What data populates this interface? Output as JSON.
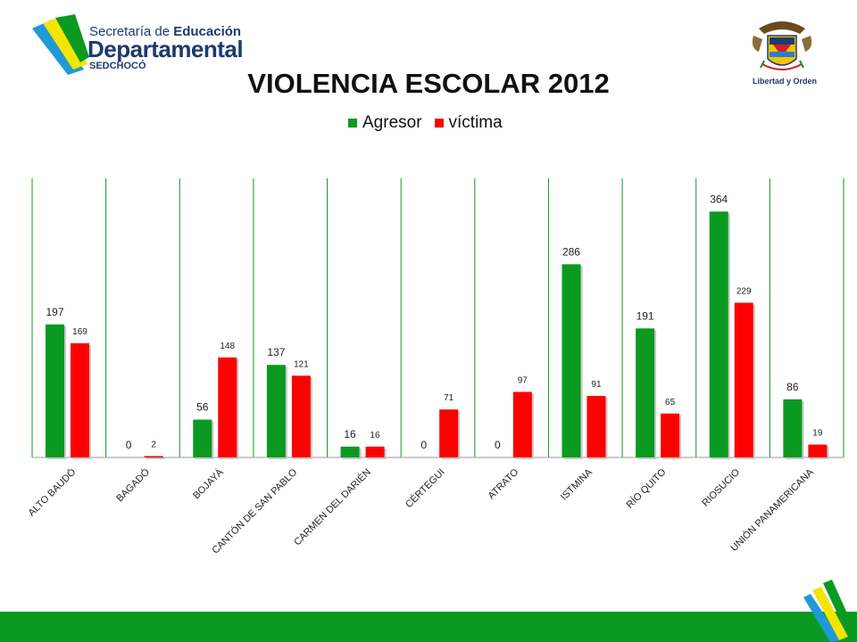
{
  "header": {
    "org_line1_a": "Secretaría de ",
    "org_line1_b": "Educación",
    "org_line2": "Departamental",
    "org_line3": "SEDCHOCÓ",
    "motto": "Libertad y Orden"
  },
  "colors": {
    "agresor": "#0a9a21",
    "victima": "#ff0000",
    "footer": "#0a9a21",
    "brand_blue": "#1d3b6e"
  },
  "chart_data": {
    "type": "bar",
    "title": "VIOLENCIA ESCOLAR 2012",
    "xlabel": "",
    "ylabel": "",
    "ylim": [
      0,
      400
    ],
    "grid": false,
    "legend_position": "top-center",
    "categories": [
      "ALTO BAUDÓ",
      "BAGADÓ",
      "BOJAYÁ",
      "CANTÓN DE SAN PABLO",
      "CARMEN DEL DARIÉN",
      "CÉRTEGUI",
      "ATRATO",
      "ISTMINA",
      "RÍO QUITO",
      "RIOSUCIO",
      "UNIÓN PANAMERICANA"
    ],
    "series": [
      {
        "name": "Agresor",
        "values": [
          197,
          0,
          56,
          137,
          16,
          0,
          0,
          286,
          191,
          364,
          86
        ]
      },
      {
        "name": "víctima",
        "values": [
          169,
          2,
          148,
          121,
          16,
          71,
          97,
          91,
          65,
          229,
          19
        ]
      }
    ]
  }
}
